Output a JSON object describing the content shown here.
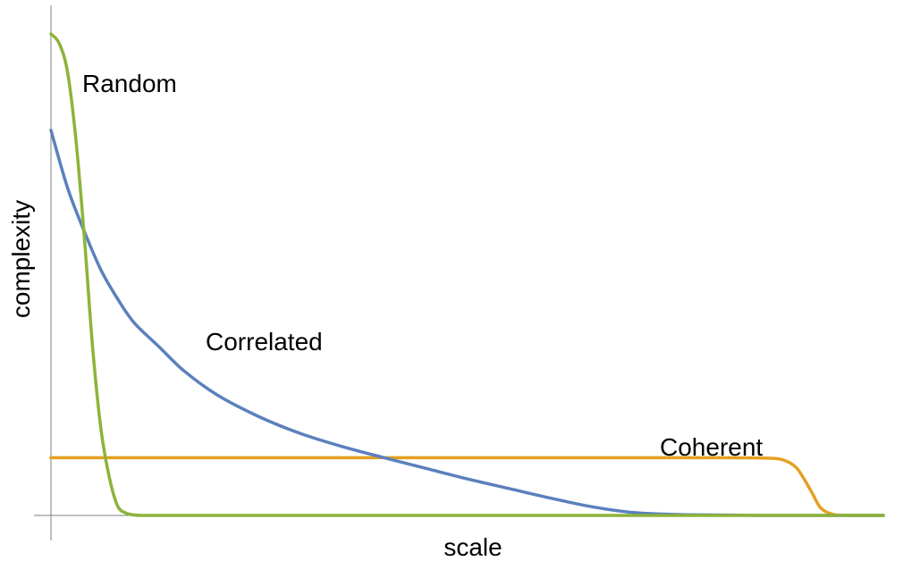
{
  "chart_data": {
    "type": "line",
    "title": "",
    "xlabel": "scale",
    "ylabel": "complexity",
    "xlim": [
      0,
      1
    ],
    "ylim": [
      0,
      1
    ],
    "grid": false,
    "legend": "none",
    "series": [
      {
        "name": "Random",
        "color": "#8db33a",
        "x": [
          0,
          0.01,
          0.02,
          0.03,
          0.04,
          0.05,
          0.06,
          0.07,
          0.08,
          0.09,
          0.1,
          0.11,
          0.12,
          0.13,
          0.15,
          0.2,
          0.4,
          0.6,
          0.8,
          1.0
        ],
        "y": [
          1.0,
          0.98,
          0.92,
          0.78,
          0.58,
          0.35,
          0.18,
          0.08,
          0.02,
          0.005,
          0.001,
          0,
          0,
          0,
          0,
          0,
          0,
          0,
          0,
          0
        ]
      },
      {
        "name": "Correlated",
        "color": "#5b80bd",
        "x": [
          0,
          0.02,
          0.04,
          0.06,
          0.08,
          0.1,
          0.13,
          0.16,
          0.2,
          0.25,
          0.3,
          0.35,
          0.4,
          0.45,
          0.5,
          0.55,
          0.6,
          0.65,
          0.7,
          0.75,
          0.8,
          0.85,
          0.9,
          0.95,
          1.0
        ],
        "y": [
          0.8,
          0.68,
          0.59,
          0.51,
          0.45,
          0.4,
          0.35,
          0.3,
          0.25,
          0.205,
          0.17,
          0.143,
          0.12,
          0.098,
          0.076,
          0.056,
          0.036,
          0.018,
          0.006,
          0.002,
          0.001,
          0,
          0,
          0,
          0
        ]
      },
      {
        "name": "Coherent",
        "color": "#e6a020",
        "x": [
          0,
          0.1,
          0.2,
          0.3,
          0.4,
          0.5,
          0.6,
          0.7,
          0.8,
          0.86,
          0.88,
          0.895,
          0.905,
          0.915,
          0.925,
          0.94,
          0.96,
          1.0
        ],
        "y": [
          0.12,
          0.12,
          0.12,
          0.12,
          0.12,
          0.12,
          0.12,
          0.12,
          0.12,
          0.119,
          0.115,
          0.1,
          0.075,
          0.045,
          0.015,
          0.002,
          0,
          0
        ]
      }
    ]
  }
}
